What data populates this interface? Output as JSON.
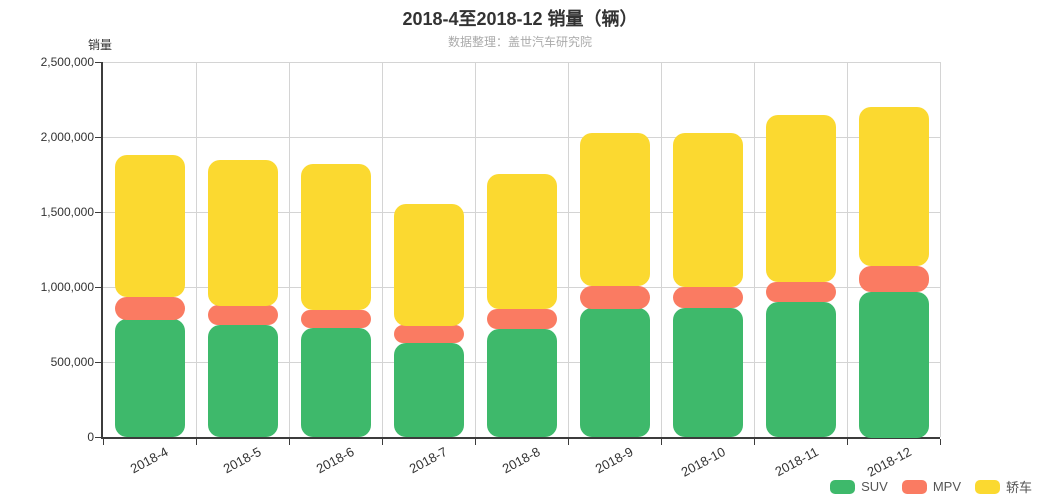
{
  "header": {
    "title": "2018-4至2018-12 销量（辆）",
    "subtitle": "数据整理：盖世汽车研究院"
  },
  "chart_data": {
    "type": "bar",
    "stacked": true,
    "title": "2018-4至2018-12 销量（辆）",
    "subtitle": "数据整理：盖世汽车研究院",
    "ylabel": "销量",
    "xlabel": "",
    "categories": [
      "2018-4",
      "2018-5",
      "2018-6",
      "2018-7",
      "2018-8",
      "2018-9",
      "2018-10",
      "2018-11",
      "2018-12"
    ],
    "series": [
      {
        "name": "SUV",
        "color": "#3EB96B",
        "values": [
          785000,
          745000,
          725000,
          625000,
          720000,
          860000,
          860000,
          900000,
          970000
        ]
      },
      {
        "name": "MPV",
        "color": "#FA7B62",
        "values": [
          150000,
          135000,
          120000,
          120000,
          135000,
          150000,
          140000,
          135000,
          170000
        ]
      },
      {
        "name": "轿车",
        "color": "#FBD930",
        "values": [
          945000,
          970000,
          975000,
          810000,
          900000,
          1020000,
          1025000,
          1110000,
          1060000
        ]
      }
    ],
    "totals": [
      1880000,
      1850000,
      1820000,
      1555000,
      1755000,
      2030000,
      2025000,
      2145000,
      2200000
    ],
    "ylim": [
      0,
      2500000
    ],
    "ytick_interval": 500000,
    "ytick_labels": [
      "0",
      "500,000",
      "1,000,000",
      "1,500,000",
      "2,000,000",
      "2,500,000"
    ],
    "grid": true,
    "legend_position": "bottom-right",
    "legend": [
      "SUV",
      "MPV",
      "轿车"
    ]
  }
}
